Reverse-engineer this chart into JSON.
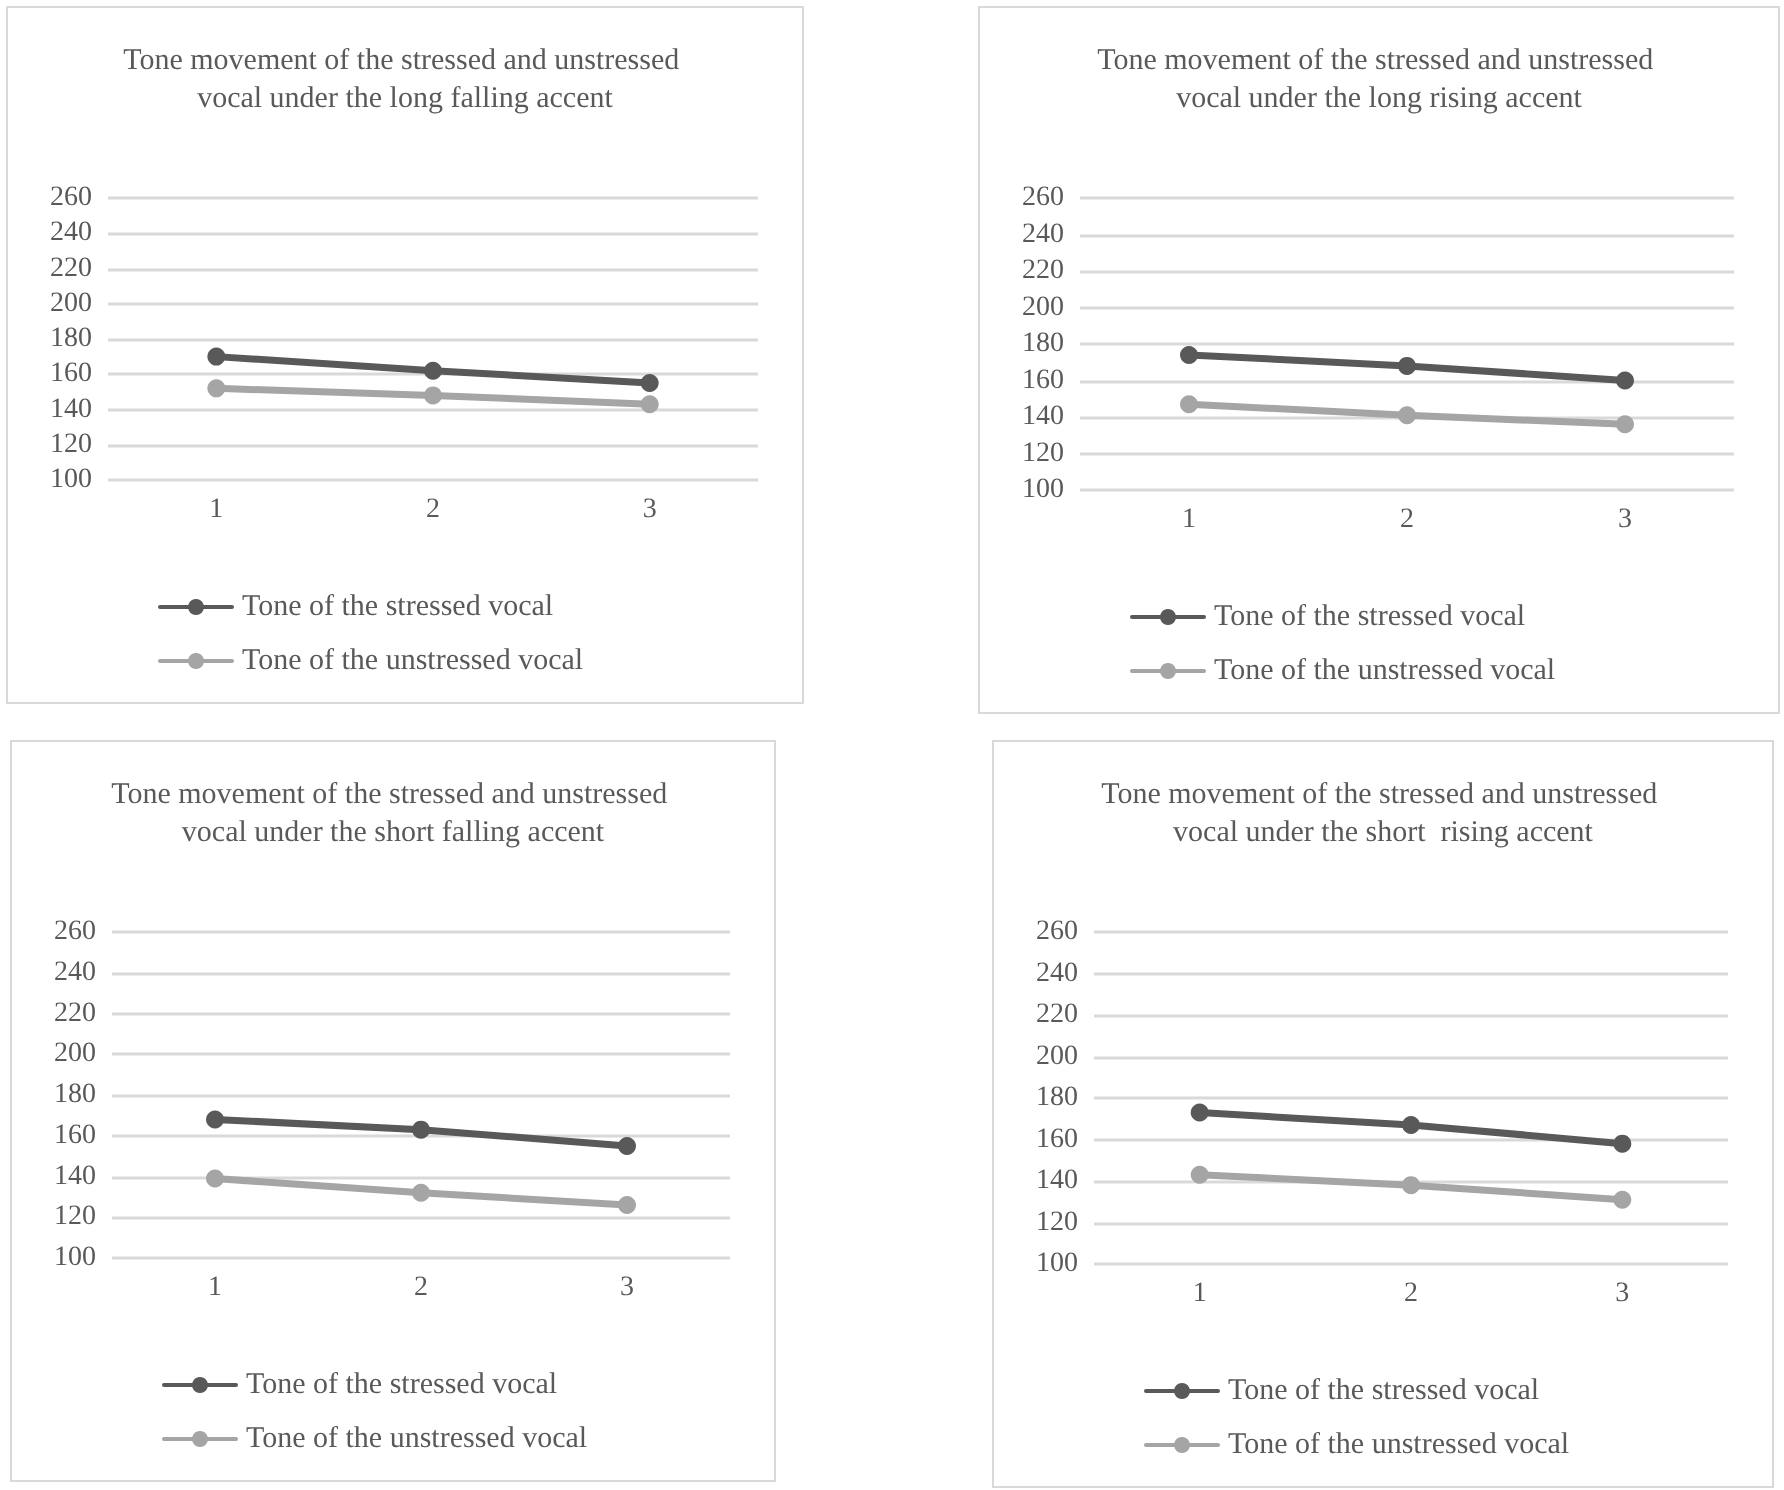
{
  "chart_data": [
    {
      "type": "line",
      "title": "Tone movement of the stressed and unstressed vocal under the long falling accent",
      "categories": [
        "1",
        "2",
        "3"
      ],
      "ylim": [
        100,
        260
      ],
      "yticks": [
        100,
        120,
        140,
        160,
        180,
        200,
        220,
        240,
        260
      ],
      "grid": "y",
      "legend": "bottom",
      "marker": "circle",
      "series": [
        {
          "name": "Tone of the stressed vocal",
          "color": "#595959",
          "values": [
            170,
            162,
            155
          ]
        },
        {
          "name": "Tone of the unstressed vocal",
          "color": "#a5a5a5",
          "values": [
            152,
            148,
            143
          ]
        }
      ]
    },
    {
      "type": "line",
      "title": "Tone movement of the stressed and unstressed vocal under the long rising accent",
      "categories": [
        "1",
        "2",
        "3"
      ],
      "ylim": [
        100,
        260
      ],
      "yticks": [
        100,
        120,
        140,
        160,
        180,
        200,
        220,
        240,
        260
      ],
      "grid": "y",
      "legend": "bottom",
      "marker": "circle",
      "series": [
        {
          "name": "Tone of the stressed vocal",
          "color": "#595959",
          "values": [
            174,
            168,
            160
          ]
        },
        {
          "name": "Tone of the unstressed vocal",
          "color": "#a5a5a5",
          "values": [
            147,
            141,
            136
          ]
        }
      ]
    },
    {
      "type": "line",
      "title": "Tone movement of the stressed and unstressed vocal under the short falling accent",
      "categories": [
        "1",
        "2",
        "3"
      ],
      "ylim": [
        100,
        260
      ],
      "yticks": [
        100,
        120,
        140,
        160,
        180,
        200,
        220,
        240,
        260
      ],
      "grid": "y",
      "legend": "bottom",
      "marker": "circle",
      "series": [
        {
          "name": "Tone of the stressed vocal",
          "color": "#595959",
          "values": [
            168,
            163,
            155
          ]
        },
        {
          "name": "Tone of the unstressed vocal",
          "color": "#a5a5a5",
          "values": [
            139,
            132,
            126
          ]
        }
      ]
    },
    {
      "type": "line",
      "title": "Tone movement of the stressed and unstressed vocal under the short  rising accent",
      "categories": [
        "1",
        "2",
        "3"
      ],
      "ylim": [
        100,
        260
      ],
      "yticks": [
        100,
        120,
        140,
        160,
        180,
        200,
        220,
        240,
        260
      ],
      "grid": "y",
      "legend": "bottom",
      "marker": "circle",
      "series": [
        {
          "name": "Tone of the stressed vocal",
          "color": "#595959",
          "values": [
            173,
            167,
            158
          ]
        },
        {
          "name": "Tone of the unstressed vocal",
          "color": "#a5a5a5",
          "values": [
            143,
            138,
            131
          ]
        }
      ]
    }
  ]
}
